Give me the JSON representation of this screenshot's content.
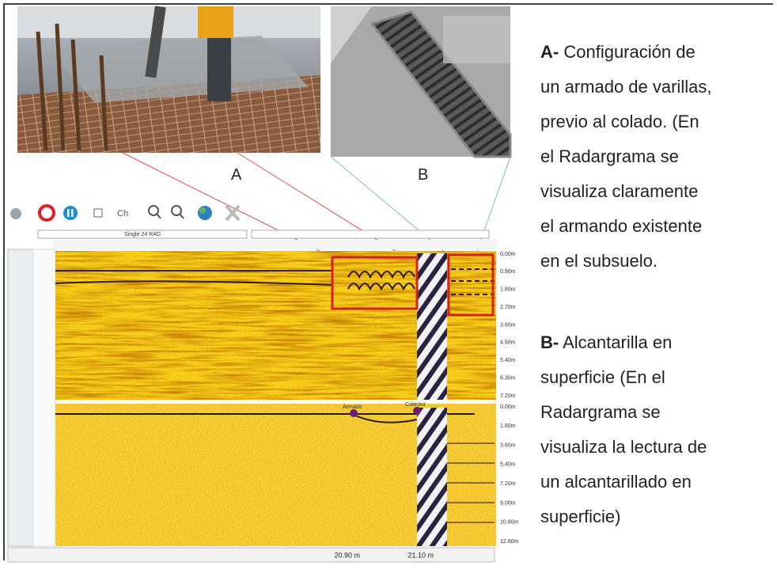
{
  "figure": {
    "photos": [
      {
        "label": "A"
      },
      {
        "label": "B"
      }
    ],
    "radargram": {
      "header": "Single 24 RAD",
      "markers": [
        "Armado",
        "Colector"
      ],
      "depth_labels_top": [
        "0.00m",
        "0.90m",
        "1.80m",
        "2.70m",
        "3.60m",
        "4.50m",
        "5.40m",
        "6.30m",
        "7.20m"
      ],
      "depth_labels_bottom": [
        "0.00m",
        "1.80m",
        "3.60m",
        "5.40m",
        "7.20m",
        "9.00m",
        "10.80m",
        "12.60m"
      ],
      "status": [
        "20.90 m",
        "21.10 m"
      ]
    },
    "descriptions": [
      {
        "label": "A-",
        "lines": [
          "Configuración de",
          "un armado de varillas,",
          "previo al colado. (En",
          "el Radargrama se",
          "visualiza claramente",
          "el armando existente",
          "en el subsuelo."
        ]
      },
      {
        "label": "B-",
        "lines": [
          "Alcantarilla en",
          "superficie (En el",
          "Radargrama se",
          "visualiza la lectura de",
          "un alcantarillado en",
          "superficie)"
        ]
      }
    ]
  }
}
